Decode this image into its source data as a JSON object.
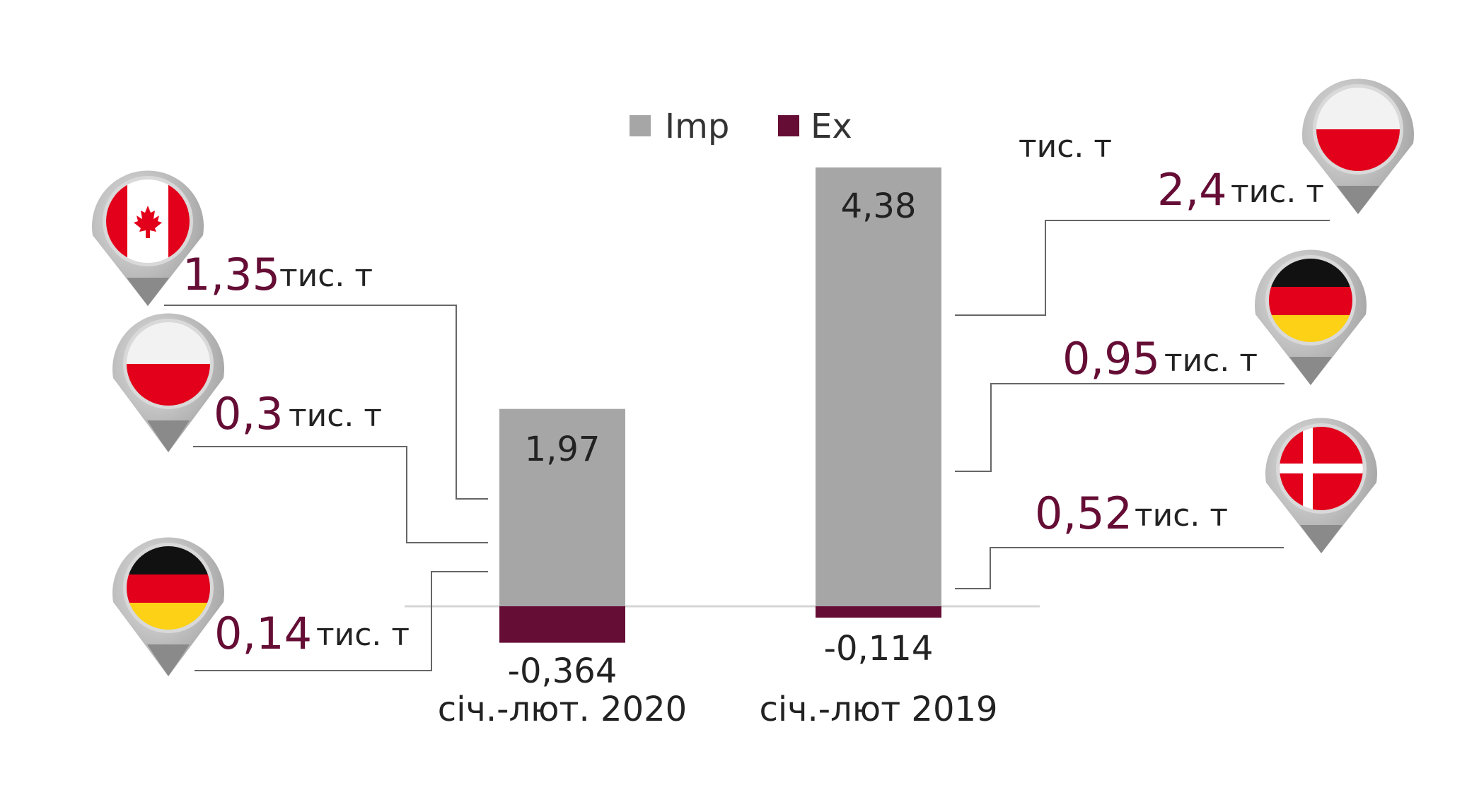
{
  "colors": {
    "imp": "#a6a6a6",
    "ex": "#650d35",
    "connector": "#666666",
    "baseline": "#d6d6d6"
  },
  "unit_label": "тис. т",
  "chart_data": {
    "type": "bar",
    "stacked": true,
    "categories": [
      "січ.-лют. 2020",
      "січ.-лют 2019"
    ],
    "value_labels": [
      {
        "imp": "1,97",
        "ex": "-0,364"
      },
      {
        "imp": "4,38",
        "ex": "-0,114"
      }
    ],
    "series": [
      {
        "name": "Imp",
        "values": [
          1.97,
          4.38
        ]
      },
      {
        "name": "Ex",
        "values": [
          -0.364,
          -0.114
        ]
      }
    ],
    "ylim": [
      -0.5,
      4.8
    ],
    "grid": false,
    "legend": "top-center",
    "callouts": [
      {
        "category": "січ.-лют. 2020",
        "side": "left",
        "country": "canada-flag-icon",
        "value": "1,35",
        "unit": "тис. т"
      },
      {
        "category": "січ.-лют. 2020",
        "side": "left",
        "country": "poland-flag-icon",
        "value": "0,3",
        "unit": "тис. т"
      },
      {
        "category": "січ.-лют. 2020",
        "side": "left",
        "country": "germany-flag-icon",
        "value": "0,14",
        "unit": "тис. т"
      },
      {
        "category": "січ.-лют 2019",
        "side": "right",
        "country": "poland-flag-icon",
        "value": "2,4",
        "unit": "тис. т"
      },
      {
        "category": "січ.-лют 2019",
        "side": "right",
        "country": "germany-flag-icon",
        "value": "0,95",
        "unit": "тис. т"
      },
      {
        "category": "січ.-лют 2019",
        "side": "right",
        "country": "denmark-flag-icon",
        "value": "0,52",
        "unit": "тис. т"
      }
    ]
  }
}
